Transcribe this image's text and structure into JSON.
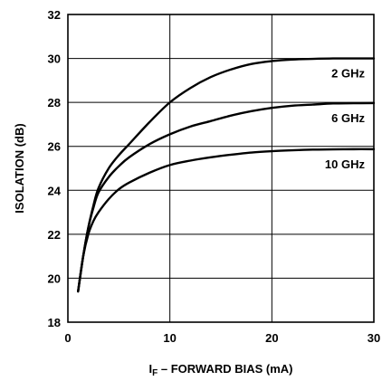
{
  "chart_data": {
    "type": "line",
    "title": "",
    "xlabel": "I",
    "xlabel_sub": "F",
    "xlabel_rest": " – FORWARD BIAS (mA)",
    "ylabel": "ISOLATION (dB)",
    "xlim": [
      0,
      30
    ],
    "ylim": [
      18,
      32
    ],
    "xticks": [
      0,
      10,
      20,
      30
    ],
    "yticks": [
      18,
      20,
      22,
      24,
      26,
      28,
      30,
      32
    ],
    "grid": true,
    "series": [
      {
        "name": "2 GHz",
        "x": [
          1,
          1.5,
          2,
          2.5,
          3,
          4,
          5,
          6,
          8,
          10,
          12,
          14,
          16,
          18,
          20,
          22,
          24,
          26,
          28,
          30
        ],
        "y": [
          19.4,
          21.0,
          22.3,
          23.3,
          24.1,
          25.0,
          25.6,
          26.1,
          27.1,
          28.0,
          28.65,
          29.15,
          29.5,
          29.75,
          29.88,
          29.95,
          29.98,
          30.0,
          30.0,
          30.0
        ]
      },
      {
        "name": "6 GHz",
        "x": [
          1,
          1.5,
          2,
          2.5,
          3,
          4,
          5,
          6,
          8,
          10,
          12,
          14,
          16,
          18,
          20,
          22,
          24,
          26,
          28,
          30
        ],
        "y": [
          19.4,
          21.0,
          22.3,
          23.2,
          23.9,
          24.6,
          25.1,
          25.5,
          26.1,
          26.55,
          26.9,
          27.15,
          27.4,
          27.6,
          27.75,
          27.85,
          27.9,
          27.95,
          27.96,
          27.97
        ]
      },
      {
        "name": "10 GHz",
        "x": [
          1,
          1.5,
          2,
          2.5,
          3,
          4,
          5,
          6,
          8,
          10,
          12,
          14,
          16,
          18,
          20,
          22,
          24,
          26,
          28,
          30
        ],
        "y": [
          19.4,
          21.0,
          22.0,
          22.6,
          23.0,
          23.6,
          24.05,
          24.35,
          24.8,
          25.15,
          25.35,
          25.5,
          25.62,
          25.72,
          25.78,
          25.82,
          25.85,
          25.86,
          25.87,
          25.87
        ]
      }
    ]
  }
}
